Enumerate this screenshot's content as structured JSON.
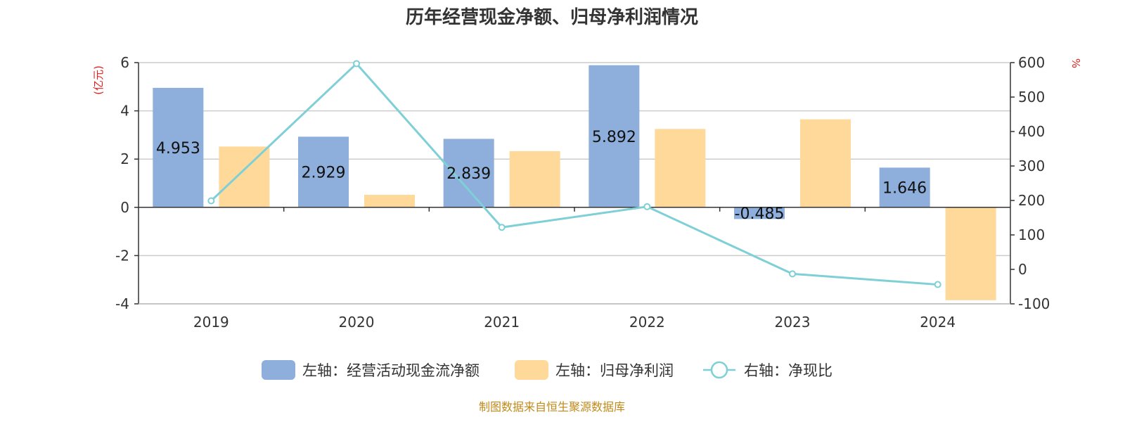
{
  "chart_data": {
    "type": "bar",
    "title": "历年经营现金净额、归母净利润情况",
    "categories": [
      "2019",
      "2020",
      "2021",
      "2022",
      "2023",
      "2024"
    ],
    "left_axis": {
      "unit_label": "(亿元)",
      "ylim": [
        -4,
        6
      ],
      "ticks": [
        6,
        4,
        2,
        0,
        -2,
        -4
      ]
    },
    "right_axis": {
      "unit_label": "%",
      "ylim": [
        -100,
        600
      ],
      "ticks": [
        600,
        500,
        400,
        300,
        200,
        100,
        0,
        -100
      ]
    },
    "grid": true,
    "legend_position": "bottom",
    "series": [
      {
        "name": "左轴：经营活动现金流净额",
        "type": "bar",
        "axis": "left",
        "color": "#8eaedb",
        "values": [
          4.953,
          2.929,
          2.839,
          5.892,
          -0.485,
          1.646
        ],
        "data_labels": [
          "4.953",
          "2.929",
          "2.839",
          "5.892",
          "-0.485",
          "1.646"
        ]
      },
      {
        "name": "左轴：归母净利润",
        "type": "bar",
        "axis": "left",
        "color": "#ffd999",
        "values": [
          2.52,
          0.52,
          2.33,
          3.25,
          3.65,
          -3.85
        ]
      },
      {
        "name": "右轴：净现比",
        "type": "line",
        "axis": "right",
        "color": "#7fd0d6",
        "values": [
          199,
          597,
          122,
          182,
          -13,
          -44
        ]
      }
    ],
    "source": "制图数据来自恒生聚源数据库"
  }
}
